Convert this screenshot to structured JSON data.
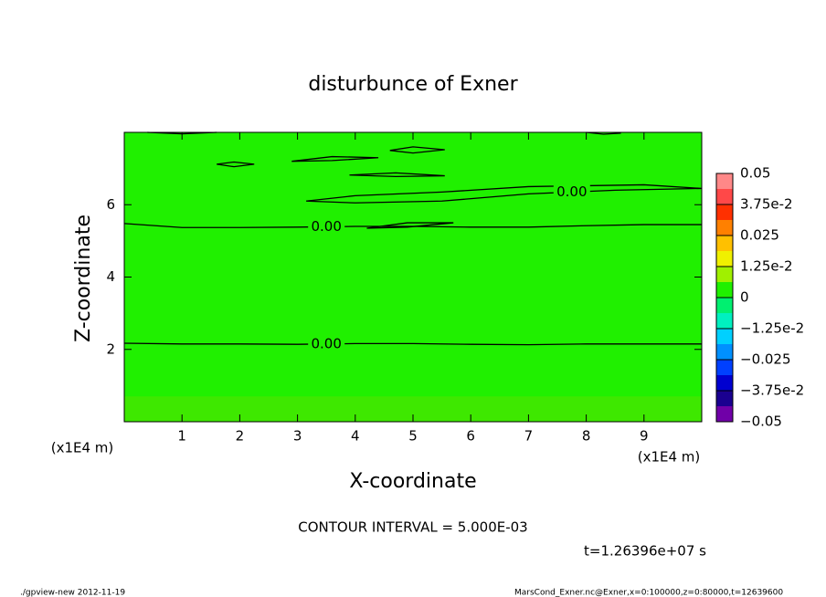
{
  "chart_data": {
    "type": "contour",
    "title": "disturbunce of Exner",
    "xlabel": "X-coordinate",
    "ylabel": "Z-coordinate",
    "axis_unit": "(x1E4 m)",
    "xlim": [
      0,
      10
    ],
    "xticks": [
      1,
      2,
      3,
      4,
      5,
      6,
      7,
      8,
      9
    ],
    "ylim": [
      0,
      8
    ],
    "yticks": [
      2,
      4,
      6
    ],
    "field_color": "#20f000",
    "lower_band": {
      "ylim": [
        0,
        0.7
      ],
      "color": "#3ee800"
    },
    "contours": [
      {
        "x": [
          0,
          1,
          2,
          3,
          4,
          5,
          6,
          7,
          8,
          9,
          10
        ],
        "y": [
          2.17,
          2.15,
          2.15,
          2.14,
          2.16,
          2.16,
          2.14,
          2.13,
          2.15,
          2.15,
          2.15
        ],
        "label": "0.00"
      },
      {
        "x": [
          0,
          1,
          2,
          3,
          4,
          5,
          6,
          7,
          8,
          9,
          10
        ],
        "y": [
          5.48,
          5.37,
          5.37,
          5.38,
          5.4,
          5.4,
          5.38,
          5.38,
          5.42,
          5.45,
          5.45
        ],
        "label": "0.00"
      },
      {
        "x": [
          3.15,
          4,
          5.5,
          7,
          8.5,
          10,
          9,
          7,
          5.5,
          4,
          3.15
        ],
        "y": [
          6.1,
          6.05,
          6.1,
          6.3,
          6.4,
          6.45,
          6.55,
          6.5,
          6.35,
          6.25,
          6.1
        ],
        "label": "0.00"
      },
      {
        "x": [
          1.6,
          1.9,
          2.25,
          1.9,
          1.6
        ],
        "y": [
          7.12,
          7.05,
          7.12,
          7.18,
          7.12
        ]
      },
      {
        "x": [
          2.9,
          3.6,
          4.4,
          3.6,
          2.9
        ],
        "y": [
          7.2,
          7.22,
          7.3,
          7.33,
          7.2
        ]
      },
      {
        "x": [
          4.6,
          5.0,
          5.55,
          5.0,
          4.6
        ],
        "y": [
          7.5,
          7.43,
          7.52,
          7.6,
          7.5
        ]
      },
      {
        "x": [
          3.9,
          4.7,
          5.55,
          4.7,
          3.9
        ],
        "y": [
          6.82,
          6.78,
          6.8,
          6.88,
          6.82
        ]
      },
      {
        "x": [
          4.2,
          4.9,
          5.7,
          4.9,
          4.2
        ],
        "y": [
          5.35,
          5.38,
          5.5,
          5.5,
          5.35
        ]
      },
      {
        "x": [
          0.4,
          1,
          1.6
        ],
        "y": [
          8,
          7.96,
          8
        ]
      },
      {
        "x": [
          8,
          8.3,
          8.6
        ],
        "y": [
          8,
          7.95,
          7.98
        ]
      }
    ],
    "colorbar": {
      "levels": [
        -0.05,
        -0.04375,
        -0.0375,
        -0.03125,
        -0.025,
        -0.01875,
        -0.0125,
        -0.00625,
        0,
        0.00625,
        0.0125,
        0.01875,
        0.025,
        0.03125,
        0.0375,
        0.04375,
        0.05
      ],
      "colors": [
        "#7000a8",
        "#1a0090",
        "#0000d0",
        "#0040ff",
        "#0090ff",
        "#00d0ff",
        "#00f0c0",
        "#00f070",
        "#20f000",
        "#a0f000",
        "#f0f000",
        "#ffc000",
        "#ff8000",
        "#ff3000",
        "#ff4848",
        "#ff8888"
      ],
      "ticks": [
        0.05,
        {
          "value": 0.0375,
          "label": "3.75e-2"
        },
        0.025,
        {
          "value": 0.0125,
          "label": "1.25e-2"
        },
        0,
        {
          "value": -0.0125,
          "label": "−1.25e-2"
        },
        {
          "value": -0.025,
          "label": "−0.025"
        },
        {
          "value": -0.0375,
          "label": "−3.75e-2"
        },
        {
          "value": -0.05,
          "label": "−0.05"
        }
      ]
    },
    "contour_interval": "CONTOUR INTERVAL = 5.000E-03",
    "time_label": "t=1.26396e+07 s",
    "footer_left": "./gpview-new   2012-11-19",
    "footer_right": "MarsCond_Exner.nc@Exner,x=0:100000,z=0:80000,t=12639600"
  }
}
